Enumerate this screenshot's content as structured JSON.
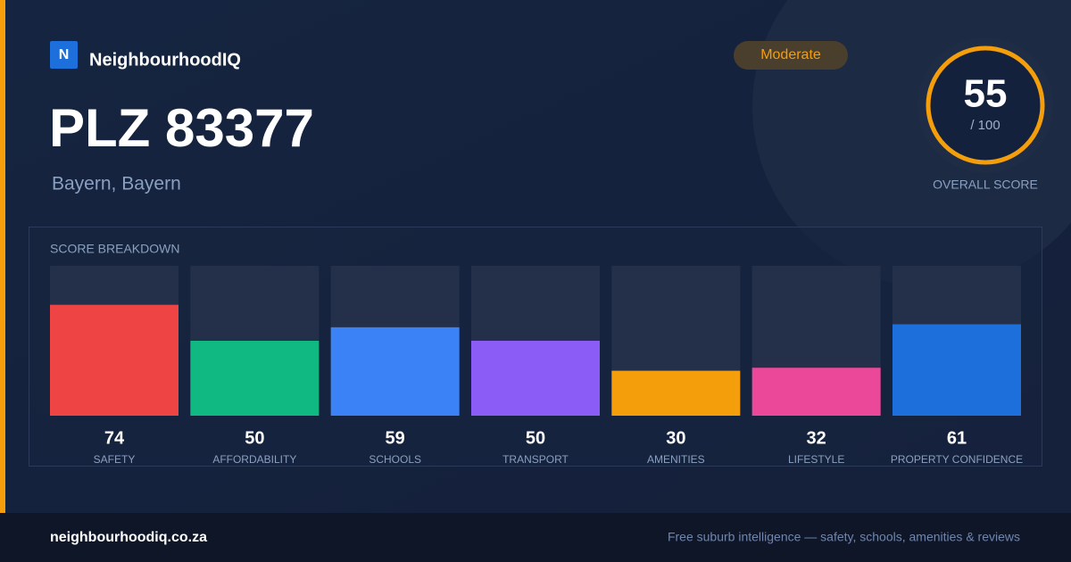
{
  "brand": {
    "logo": "N",
    "name": "NeighbourhoodIQ"
  },
  "header": {
    "title": "PLZ 83377",
    "subtitle": "Bayern, Bayern",
    "badge": "Moderate"
  },
  "score": {
    "value": 55,
    "max_label": "/ 100",
    "label": "OVERALL SCORE"
  },
  "breakdown": {
    "title": "SCORE BREAKDOWN",
    "type": "bar",
    "categories": [
      "SAFETY",
      "AFFORDABILITY",
      "SCHOOLS",
      "TRANSPORT",
      "AMENITIES",
      "LIFESTYLE",
      "PROPERTY CONFIDENCE"
    ],
    "values": [
      74,
      50,
      59,
      50,
      30,
      32,
      61
    ],
    "colors": [
      "#ef4444",
      "#10b981",
      "#3b82f6",
      "#8b5cf6",
      "#f59e0b",
      "#ec4899",
      "#1d6fdb"
    ],
    "ylim": [
      0,
      100
    ]
  },
  "footer": {
    "site": "neighbourhoodiq.co.za",
    "tagline": "Free suburb intelligence — safety, schools, amenities & reviews"
  }
}
